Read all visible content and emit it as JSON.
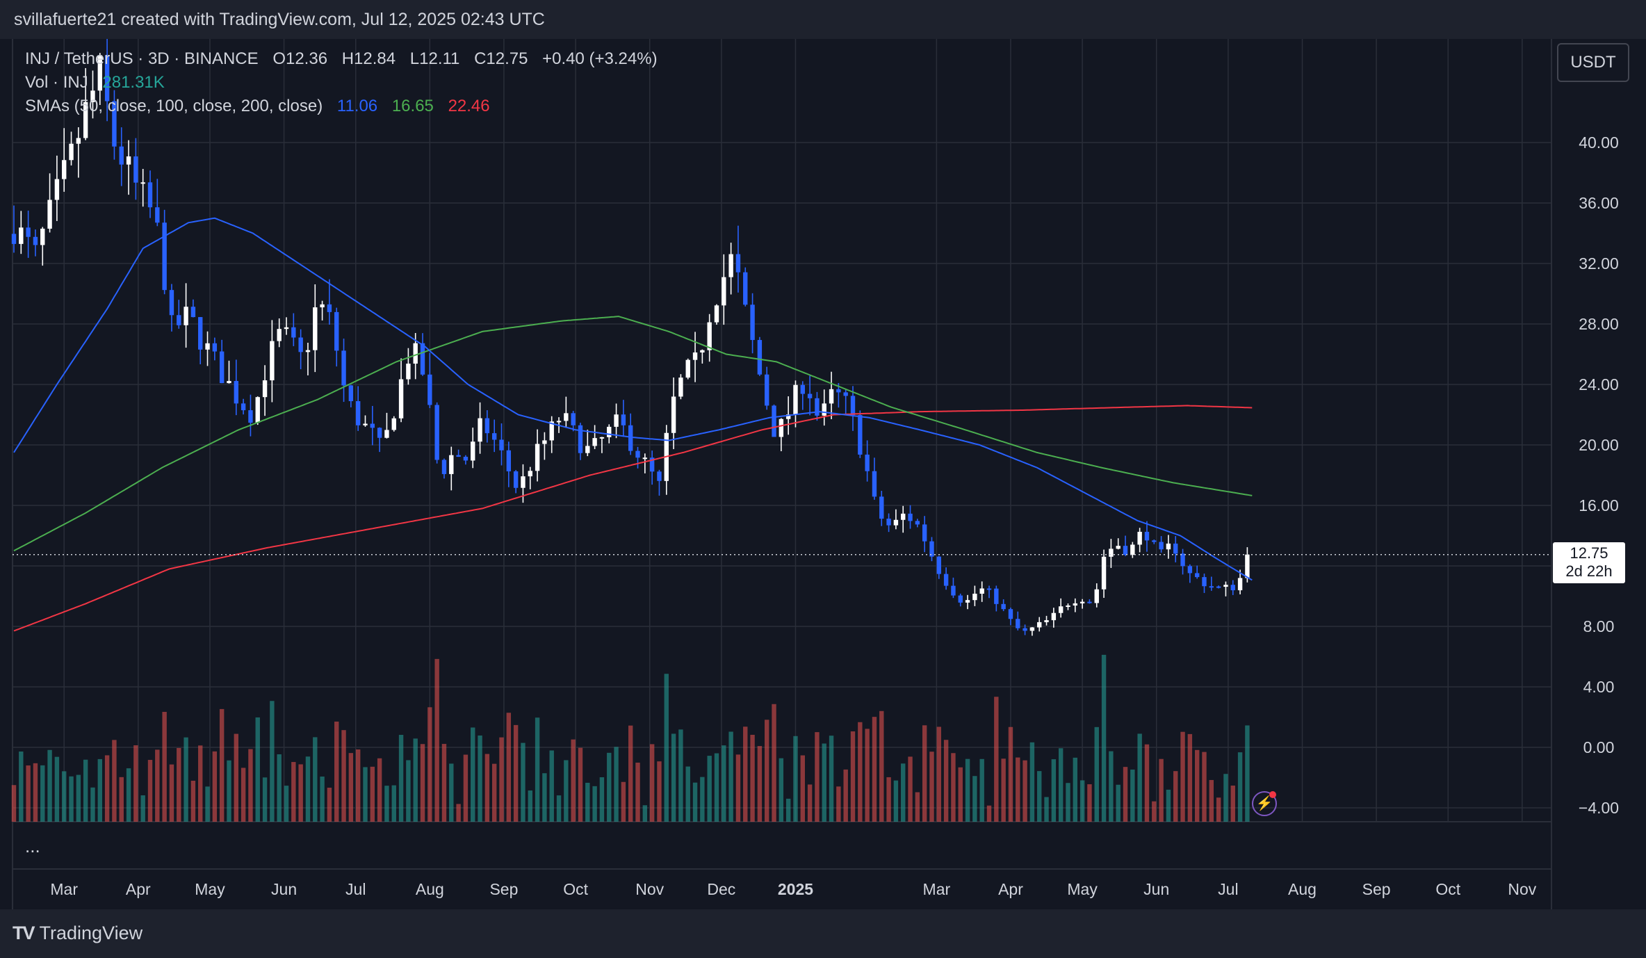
{
  "header": {
    "attribution": "svillafuerte21 created with TradingView.com, Jul 12, 2025 02:43 UTC"
  },
  "legend": {
    "symbol": "INJ / TetherUS · 3D · BINANCE",
    "open": "O12.36",
    "high": "H12.84",
    "low": "L12.11",
    "close": "C12.75",
    "change": "+0.40 (+3.24%)",
    "vol_label": "Vol · INJ",
    "vol_value": "281.31K",
    "sma_label": "SMAs (50, close, 100, close, 200, close)",
    "sma50": "11.06",
    "sma100": "16.65",
    "sma200": "22.46"
  },
  "currency_button": "USDT",
  "price_tag": {
    "price": "12.75",
    "countdown": "2d 22h"
  },
  "more_indicator": "...",
  "footer": {
    "brand": "TradingView",
    "logo": "tv-logo-icon"
  },
  "colors": {
    "bull": "#ffffff",
    "bear": "#2962ff",
    "sma50": "#2962ff",
    "sma100": "#4caf50",
    "sma200": "#f23645",
    "vol_up": "#26a69a",
    "vol_down": "#ef5350",
    "background": "#131722"
  },
  "chart_data": {
    "type": "candlestick",
    "ylim": [
      -4.5,
      47
    ],
    "y_ticks": [
      "40.00",
      "36.00",
      "32.00",
      "28.00",
      "24.00",
      "20.00",
      "16.00",
      "12.00",
      "8.00",
      "4.00",
      "0.00",
      "−4.00"
    ],
    "y_tick_values": [
      40,
      36,
      32,
      28,
      24,
      20,
      16,
      12,
      8,
      4,
      0,
      -4
    ],
    "x_ticks": [
      "Mar",
      "Apr",
      "May",
      "Jun",
      "Jul",
      "Aug",
      "Sep",
      "Oct",
      "Nov",
      "Dec",
      "2025",
      "Mar",
      "Apr",
      "May",
      "Jun",
      "Jul",
      "Aug",
      "Sep",
      "Oct",
      "Nov"
    ],
    "x_tick_dates": [
      "2024-03-01",
      "2024-04-01",
      "2024-05-01",
      "2024-06-01",
      "2024-07-01",
      "2024-08-01",
      "2024-09-01",
      "2024-10-01",
      "2024-11-01",
      "2024-12-01",
      "2025-01-01",
      "2025-03-01",
      "2025-04-01",
      "2025-05-01",
      "2025-06-01",
      "2025-07-01",
      "2025-08-01",
      "2025-09-01",
      "2025-10-01",
      "2025-11-01"
    ],
    "last_price": 12.75,
    "close_anchors": [
      [
        "2024-02-09",
        34.5
      ],
      [
        "2024-02-18",
        32.5
      ],
      [
        "2024-02-27",
        36.5
      ],
      [
        "2024-03-04",
        39.0
      ],
      [
        "2024-03-10",
        42.0
      ],
      [
        "2024-03-16",
        44.5
      ],
      [
        "2024-03-22",
        40.0
      ],
      [
        "2024-03-31",
        37.0
      ],
      [
        "2024-04-06",
        35.5
      ],
      [
        "2024-04-11",
        33.0
      ],
      [
        "2024-04-14",
        27.5
      ],
      [
        "2024-04-22",
        28.5
      ],
      [
        "2024-05-01",
        26.0
      ],
      [
        "2024-05-07",
        24.5
      ],
      [
        "2024-05-13",
        23.0
      ],
      [
        "2024-05-19",
        22.0
      ],
      [
        "2024-05-25",
        25.5
      ],
      [
        "2024-05-31",
        27.5
      ],
      [
        "2024-06-09",
        25.5
      ],
      [
        "2024-06-15",
        29.5
      ],
      [
        "2024-06-21",
        28.0
      ],
      [
        "2024-06-27",
        23.0
      ],
      [
        "2024-07-03",
        21.5
      ],
      [
        "2024-07-09",
        20.5
      ],
      [
        "2024-07-12",
        19.5
      ],
      [
        "2024-07-18",
        23.0
      ],
      [
        "2024-07-24",
        26.5
      ],
      [
        "2024-07-30",
        24.5
      ],
      [
        "2024-08-02",
        21.0
      ],
      [
        "2024-08-05",
        18.0
      ],
      [
        "2024-08-11",
        19.5
      ],
      [
        "2024-08-17",
        19.0
      ],
      [
        "2024-08-23",
        21.5
      ],
      [
        "2024-08-29",
        20.0
      ],
      [
        "2024-09-04",
        18.0
      ],
      [
        "2024-09-07",
        17.0
      ],
      [
        "2024-09-13",
        19.0
      ],
      [
        "2024-09-19",
        20.5
      ],
      [
        "2024-09-25",
        22.0
      ],
      [
        "2024-10-01",
        20.5
      ],
      [
        "2024-10-07",
        19.5
      ],
      [
        "2024-10-13",
        20.5
      ],
      [
        "2024-10-19",
        21.5
      ],
      [
        "2024-10-25",
        20.0
      ],
      [
        "2024-10-31",
        18.5
      ],
      [
        "2024-11-06",
        17.0
      ],
      [
        "2024-11-09",
        22.0
      ],
      [
        "2024-11-15",
        24.5
      ],
      [
        "2024-11-21",
        25.5
      ],
      [
        "2024-11-27",
        29.5
      ],
      [
        "2024-12-03",
        31.5
      ],
      [
        "2024-12-06",
        32.5
      ],
      [
        "2024-12-09",
        30.0
      ],
      [
        "2024-12-12",
        28.0
      ],
      [
        "2024-12-18",
        24.0
      ],
      [
        "2024-12-24",
        20.5
      ],
      [
        "2024-12-30",
        22.5
      ],
      [
        "2025-01-05",
        24.5
      ],
      [
        "2025-01-11",
        21.5
      ],
      [
        "2025-01-17",
        23.5
      ],
      [
        "2025-01-23",
        22.5
      ],
      [
        "2025-01-29",
        19.5
      ],
      [
        "2025-02-04",
        15.5
      ],
      [
        "2025-02-10",
        14.5
      ],
      [
        "2025-02-16",
        15.5
      ],
      [
        "2025-02-22",
        14.5
      ],
      [
        "2025-03-01",
        12.0
      ],
      [
        "2025-03-07",
        10.5
      ],
      [
        "2025-03-13",
        9.5
      ],
      [
        "2025-03-19",
        10.5
      ],
      [
        "2025-03-25",
        10.0
      ],
      [
        "2025-03-31",
        8.5
      ],
      [
        "2025-04-06",
        7.5
      ],
      [
        "2025-04-12",
        8.0
      ],
      [
        "2025-04-18",
        8.5
      ],
      [
        "2025-04-24",
        9.5
      ],
      [
        "2025-04-30",
        10.0
      ],
      [
        "2025-05-06",
        9.5
      ],
      [
        "2025-05-09",
        12.5
      ],
      [
        "2025-05-15",
        13.5
      ],
      [
        "2025-05-21",
        13.0
      ],
      [
        "2025-05-27",
        14.5
      ],
      [
        "2025-06-02",
        12.5
      ],
      [
        "2025-06-08",
        13.5
      ],
      [
        "2025-06-14",
        11.5
      ],
      [
        "2025-06-20",
        11.0
      ],
      [
        "2025-06-26",
        10.5
      ],
      [
        "2025-07-02",
        10.5
      ],
      [
        "2025-07-08",
        11.5
      ],
      [
        "2025-07-11",
        12.75
      ]
    ],
    "sma50_anchors": [
      [
        "2024-02-09",
        19.5
      ],
      [
        "2024-02-27",
        24.0
      ],
      [
        "2024-03-19",
        29.0
      ],
      [
        "2024-04-03",
        33.0
      ],
      [
        "2024-04-22",
        34.7
      ],
      [
        "2024-05-03",
        35.0
      ],
      [
        "2024-05-19",
        34.0
      ],
      [
        "2024-06-12",
        31.5
      ],
      [
        "2024-07-06",
        29.0
      ],
      [
        "2024-07-30",
        26.5
      ],
      [
        "2024-08-17",
        24.0
      ],
      [
        "2024-09-07",
        22.0
      ],
      [
        "2024-10-01",
        21.0
      ],
      [
        "2024-10-25",
        20.5
      ],
      [
        "2024-11-09",
        20.3
      ],
      [
        "2024-11-30",
        21.0
      ],
      [
        "2024-12-21",
        21.8
      ],
      [
        "2025-01-11",
        22.2
      ],
      [
        "2025-02-01",
        21.8
      ],
      [
        "2025-02-22",
        21.0
      ],
      [
        "2025-03-19",
        20.0
      ],
      [
        "2025-04-12",
        18.5
      ],
      [
        "2025-05-06",
        16.5
      ],
      [
        "2025-05-24",
        15.0
      ],
      [
        "2025-06-11",
        14.0
      ],
      [
        "2025-06-26",
        12.5
      ],
      [
        "2025-07-11",
        11.06
      ]
    ],
    "sma100_anchors": [
      [
        "2024-02-09",
        13.0
      ],
      [
        "2024-03-10",
        15.5
      ],
      [
        "2024-04-11",
        18.5
      ],
      [
        "2024-05-13",
        21.0
      ],
      [
        "2024-06-15",
        23.0
      ],
      [
        "2024-07-18",
        25.5
      ],
      [
        "2024-08-23",
        27.5
      ],
      [
        "2024-09-25",
        28.2
      ],
      [
        "2024-10-19",
        28.5
      ],
      [
        "2024-11-09",
        27.5
      ],
      [
        "2024-12-03",
        26.0
      ],
      [
        "2024-12-24",
        25.5
      ],
      [
        "2025-01-17",
        24.0
      ],
      [
        "2025-02-10",
        22.5
      ],
      [
        "2025-03-13",
        21.0
      ],
      [
        "2025-04-12",
        19.5
      ],
      [
        "2025-05-09",
        18.5
      ],
      [
        "2025-06-08",
        17.5
      ],
      [
        "2025-07-11",
        16.65
      ]
    ],
    "sma200_anchors": [
      [
        "2024-02-09",
        7.7
      ],
      [
        "2024-03-10",
        9.5
      ],
      [
        "2024-04-14",
        11.8
      ],
      [
        "2024-05-25",
        13.2
      ],
      [
        "2024-07-09",
        14.5
      ],
      [
        "2024-08-23",
        15.8
      ],
      [
        "2024-10-07",
        18.0
      ],
      [
        "2024-11-15",
        19.5
      ],
      [
        "2024-12-18",
        21.0
      ],
      [
        "2025-01-17",
        22.0
      ],
      [
        "2025-02-22",
        22.2
      ],
      [
        "2025-04-06",
        22.3
      ],
      [
        "2025-05-21",
        22.5
      ],
      [
        "2025-06-14",
        22.6
      ],
      [
        "2025-07-11",
        22.46
      ]
    ]
  }
}
